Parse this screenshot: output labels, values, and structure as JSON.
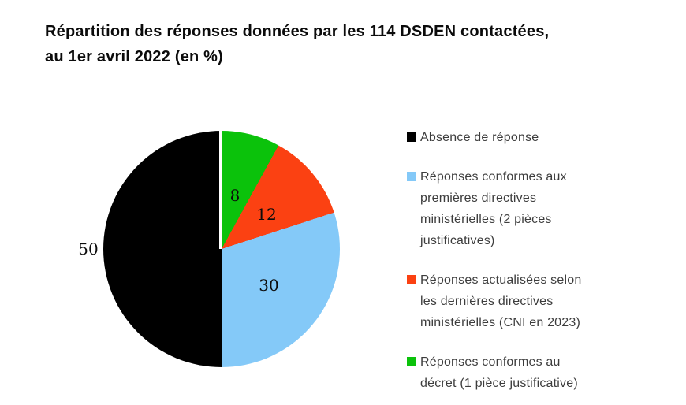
{
  "title": {
    "line1": "Répartition des réponses données par les 114 DSDEN contactées,",
    "line2": "au 1er avril 2022 (en %)"
  },
  "chart_data": {
    "type": "pie",
    "title": "Répartition des réponses données par les 114 DSDEN contactées, au 1er avril 2022 (en %)",
    "unit": "%",
    "total": 100,
    "start_angle_deg": 0,
    "direction": "clockwise",
    "legend_position": "right",
    "slices": [
      {
        "label": "Réponses conformes au décret (1 pièce justificative)",
        "value": 8,
        "color": "#0bc20b"
      },
      {
        "label": "Réponses actualisées selon les dernières directives ministérielles (CNI en 2023)",
        "value": 12,
        "color": "#fb4112"
      },
      {
        "label": "Réponses conformes aux premières directives ministérielles (2 pièces justificatives)",
        "value": 30,
        "color": "#84c9f8"
      },
      {
        "label": "Absence de réponse",
        "value": 50,
        "color": "#000000"
      }
    ]
  },
  "legend": {
    "items": [
      {
        "color": "#000000",
        "label": "Absence de réponse",
        "lines": [
          "Absence de réponse"
        ]
      },
      {
        "color": "#84c9f8",
        "label": "Réponses conformes aux premières directives ministérielles (2 pièces justificatives)",
        "lines": [
          "Réponses conformes aux",
          "premières directives",
          "ministérielles (2 pièces",
          "justificatives)"
        ]
      },
      {
        "color": "#fb4112",
        "label": "Réponses actualisées selon les dernières directives ministérielles (CNI en 2023)",
        "lines": [
          "Réponses actualisées selon",
          "les dernières directives",
          "ministérielles (CNI en 2023)"
        ]
      },
      {
        "color": "#0bc20b",
        "label": "Réponses conformes au décret (1 pièce justificative)",
        "lines": [
          "Réponses conformes au",
          "décret (1 pièce justificative)"
        ]
      }
    ]
  }
}
